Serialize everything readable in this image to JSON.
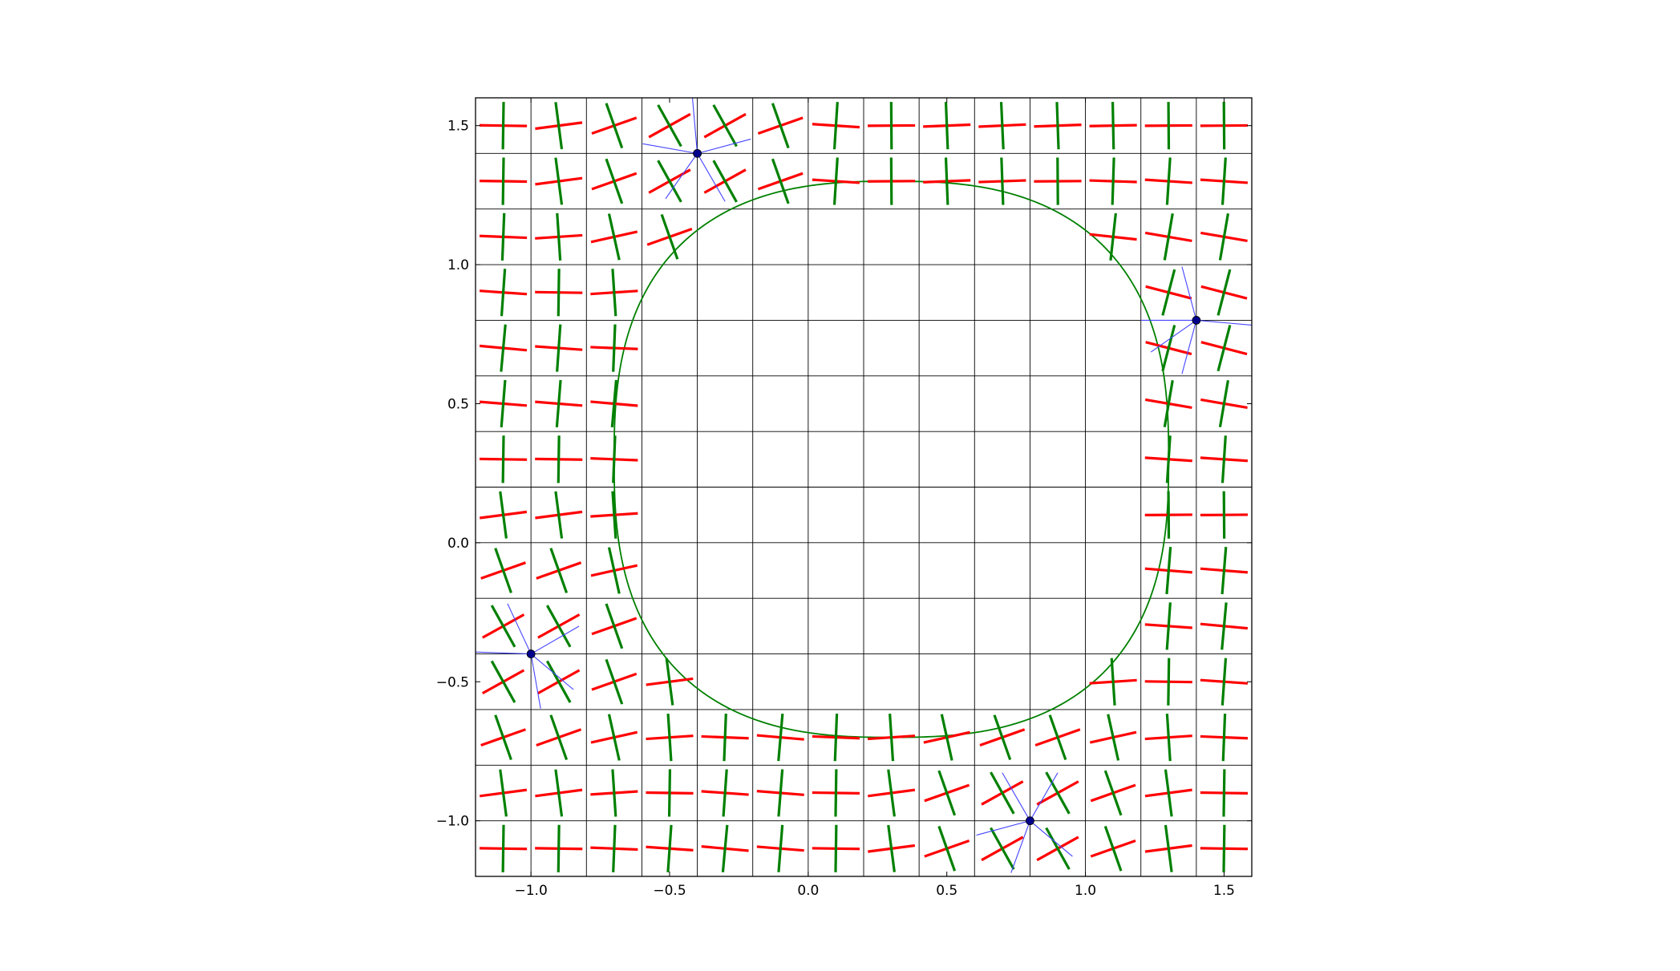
{
  "chart_data": {
    "type": "scatter",
    "title": "",
    "xlabel": "",
    "ylabel": "",
    "xlim": [
      -1.2,
      1.6
    ],
    "ylim": [
      -1.2,
      1.6
    ],
    "grid": true,
    "grid_step": 0.2,
    "grid_origin": [
      -1.2,
      -1.2
    ],
    "x_ticks": [
      -1.0,
      -0.5,
      0.0,
      0.5,
      1.0,
      1.5
    ],
    "x_tick_labels": [
      "−1.0",
      "−0.5",
      "0.0",
      "0.5",
      "1.0",
      "1.5"
    ],
    "y_ticks": [
      -1.0,
      -0.5,
      0.0,
      0.5,
      1.0,
      1.5
    ],
    "y_tick_labels": [
      "−1.0",
      "−0.5",
      "0.0",
      "0.5",
      "1.0",
      "1.5"
    ],
    "boundary_curve": {
      "shape": "superellipse",
      "center": [
        0.3,
        0.3
      ],
      "radius_x": 1.0,
      "radius_y": 1.0,
      "exponent": 2.6,
      "color": "#008000"
    },
    "cross_marks": {
      "x_centers": [
        -1.1,
        -0.9,
        -0.7,
        -0.5,
        -0.3,
        -0.1,
        0.1,
        0.3,
        0.5,
        0.7,
        0.9,
        1.1,
        1.3,
        1.5
      ],
      "y_centers": [
        -1.1,
        -0.9,
        -0.7,
        -0.5,
        -0.3,
        -0.1,
        0.1,
        0.3,
        0.5,
        0.7,
        0.9,
        1.1,
        1.3,
        1.5
      ],
      "arm_length": 0.09,
      "colors": [
        "#ff0000",
        "#008000"
      ],
      "hidden_inside_curve": true
    },
    "points": [
      {
        "x": -0.4,
        "y": 1.4
      },
      {
        "x": 1.4,
        "y": 0.8
      },
      {
        "x": -1.0,
        "y": -0.4
      },
      {
        "x": 0.8,
        "y": -1.0
      }
    ],
    "point_color": "#00008b",
    "spoke_color": "#4444ff",
    "spoke_count": 5,
    "spoke_length": 0.2
  }
}
